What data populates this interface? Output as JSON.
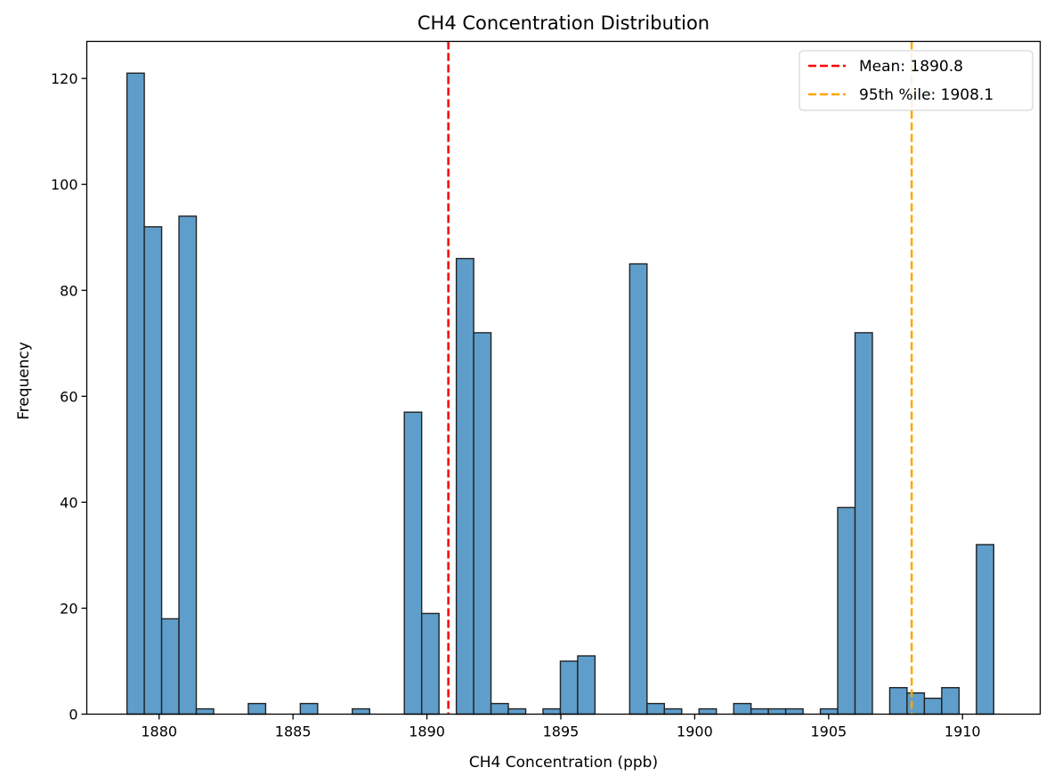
{
  "chart_data": {
    "type": "bar",
    "title": "CH4 Concentration Distribution",
    "xlabel": "CH4 Concentration (ppb)",
    "ylabel": "Frequency",
    "xlim": [
      1877.3,
      1912.9
    ],
    "ylim": [
      0,
      127
    ],
    "xticks": [
      1880,
      1885,
      1890,
      1895,
      1900,
      1905,
      1910
    ],
    "yticks": [
      0,
      20,
      40,
      60,
      80,
      100,
      120
    ],
    "bin_width": 0.6473,
    "bin_start": 1878.8,
    "bar_color": "#5f9ecb",
    "edge_color": "#222222",
    "values": [
      121,
      92,
      18,
      94,
      1,
      0,
      0,
      2,
      0,
      0,
      2,
      0,
      0,
      1,
      0,
      0,
      57,
      19,
      0,
      86,
      72,
      2,
      1,
      0,
      1,
      10,
      11,
      0,
      0,
      85,
      2,
      1,
      0,
      1,
      0,
      2,
      1,
      1,
      1,
      0,
      1,
      39,
      72,
      0,
      5,
      4,
      3,
      5,
      0,
      32
    ],
    "lines": [
      {
        "label": "Mean: 1890.8",
        "x": 1890.8,
        "color": "#ff0000"
      },
      {
        "label": "95th %ile: 1908.1",
        "x": 1908.1,
        "color": "#ffa500"
      }
    ],
    "legend_position": "top-right",
    "grid": false
  }
}
